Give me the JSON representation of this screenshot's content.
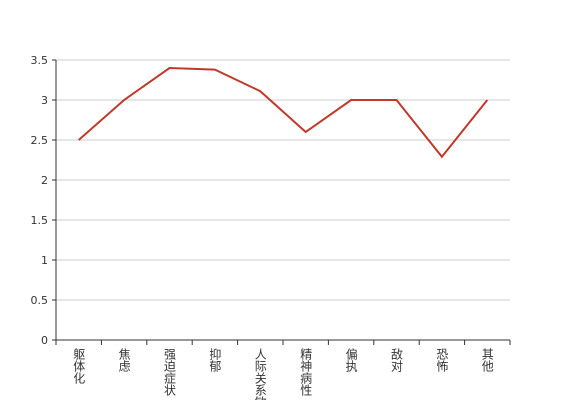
{
  "chart_data": {
    "type": "line",
    "categories": [
      "躯体化",
      "焦虑",
      "强迫症状",
      "抑郁",
      "人际关系敏感",
      "精神病性",
      "偏执",
      "敌对",
      "恐怖",
      "其他"
    ],
    "values": [
      2.5,
      3.0,
      3.4,
      3.38,
      3.11,
      2.6,
      3.0,
      3.0,
      2.29,
      3.0
    ],
    "color": "#c0392b",
    "ylim": [
      0,
      3.5
    ],
    "yticks": [
      0,
      0.5,
      1,
      1.5,
      2,
      2.5,
      3,
      3.5
    ],
    "grid": true
  }
}
